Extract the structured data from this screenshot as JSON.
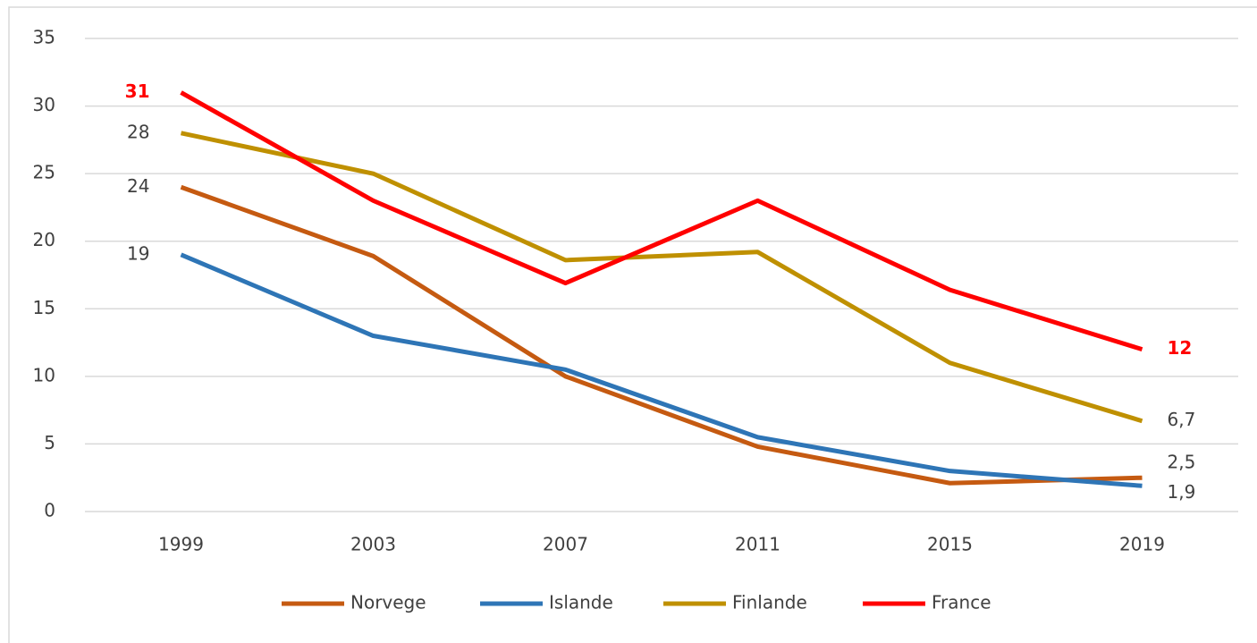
{
  "chart_data": {
    "type": "line",
    "categories": [
      "1999",
      "2003",
      "2007",
      "2011",
      "2015",
      "2019"
    ],
    "series": [
      {
        "name": "Norvege",
        "color": "#c55a11",
        "values": [
          24,
          18.9,
          10,
          4.8,
          2.1,
          2.5
        ],
        "value_labels": [
          "24",
          null,
          null,
          null,
          null,
          "2,5"
        ]
      },
      {
        "name": "Islande",
        "color": "#2e75b6",
        "values": [
          19,
          13,
          10.5,
          5.5,
          3,
          1.9
        ],
        "value_labels": [
          "19",
          null,
          null,
          null,
          null,
          "1,9"
        ]
      },
      {
        "name": "Finlande",
        "color": "#bf9000",
        "values": [
          28,
          25,
          18.6,
          19.2,
          11,
          6.7
        ],
        "value_labels": [
          "28",
          null,
          null,
          null,
          null,
          "6,7"
        ]
      },
      {
        "name": "France",
        "color": "#ff0000",
        "values": [
          31,
          23,
          16.9,
          23,
          16.4,
          12
        ],
        "value_labels": [
          "31",
          null,
          null,
          null,
          null,
          "12"
        ]
      }
    ],
    "ylim": [
      0,
      35
    ],
    "yticks": [
      0,
      5,
      10,
      15,
      20,
      25,
      30,
      35
    ],
    "grid": true,
    "legend": "bottom"
  }
}
